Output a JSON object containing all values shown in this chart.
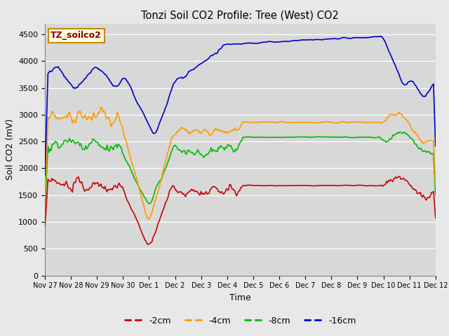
{
  "title": "Tonzi Soil CO2 Profile: Tree (West) CO2",
  "ylabel": "Soil CO2 (mV)",
  "xlabel": "Time",
  "watermark": "TZ_soilco2",
  "ylim": [
    0,
    4700
  ],
  "yticks": [
    0,
    500,
    1000,
    1500,
    2000,
    2500,
    3000,
    3500,
    4000,
    4500
  ],
  "bg_color": "#e8e8e8",
  "plot_bg_color": "#d8d8d8",
  "colors": {
    "-2cm": "#cc0000",
    "-4cm": "#ff9900",
    "-8cm": "#00bb00",
    "-16cm": "#0000cc"
  },
  "legend_labels": [
    "-2cm",
    "-4cm",
    "-8cm",
    "-16cm"
  ],
  "x_tick_labels": [
    "Nov 27",
    "Nov 28",
    "Nov 29",
    "Nov 30",
    "Dec 1",
    "Dec 2",
    "Dec 3",
    "Dec 4",
    "Dec 5",
    "Dec 6",
    "Dec 7",
    "Dec 8",
    "Dec 9",
    "Dec 10",
    "Dec 11",
    "Dec 12"
  ]
}
